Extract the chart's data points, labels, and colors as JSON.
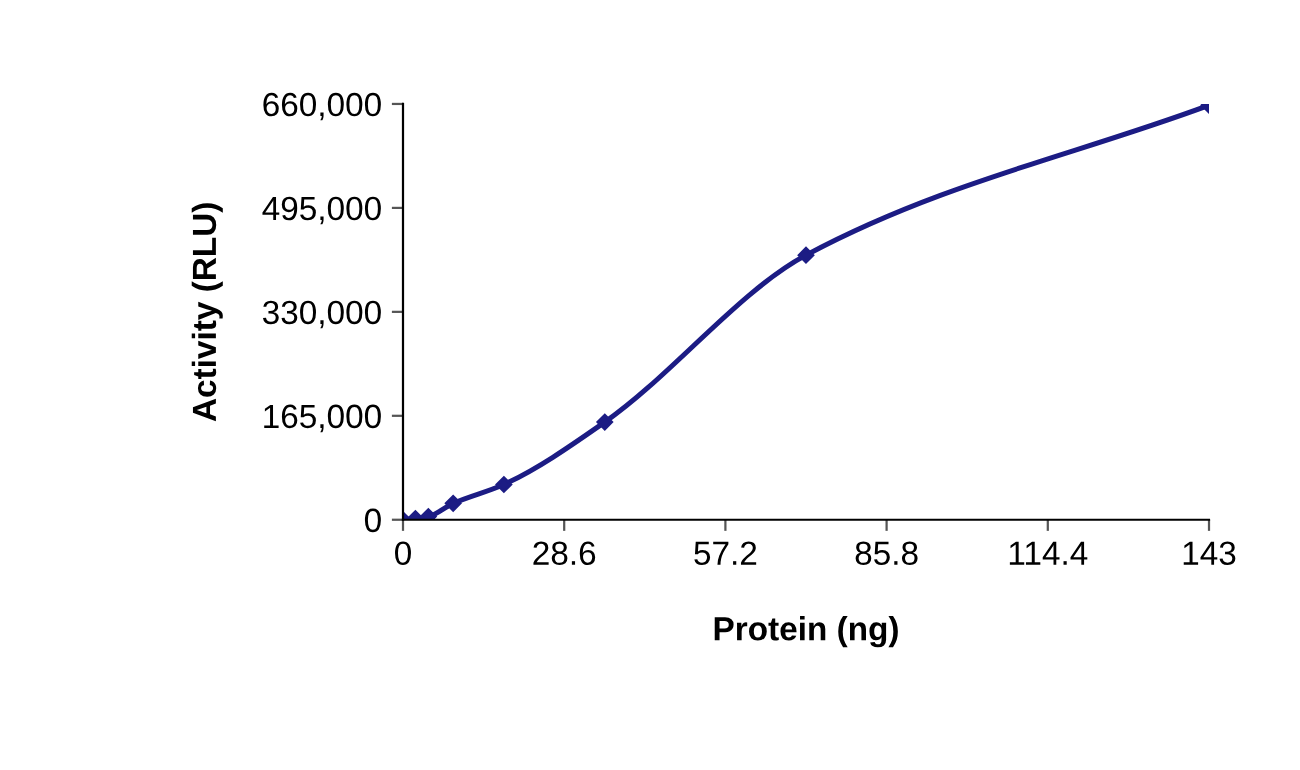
{
  "chart_data": {
    "type": "line",
    "xlabel": "Protein (ng)",
    "ylabel": "Activity (RLU)",
    "x": [
      0,
      2.2,
      4.5,
      8.9,
      17.9,
      35.8,
      71.5,
      143
    ],
    "series": [
      {
        "color": "#1c1c84",
        "values": [
          0,
          2000,
          5000,
          26000,
          56000,
          155000,
          420000,
          658000
        ]
      }
    ],
    "xlim": [
      0,
      143
    ],
    "ylim": [
      0,
      660000
    ],
    "xticks": [
      0,
      28.6,
      57.2,
      85.8,
      114.4,
      143
    ],
    "yticks": [
      {
        "value": 0,
        "label": "0"
      },
      {
        "value": 165000,
        "label": "165,000"
      },
      {
        "value": 330000,
        "label": "330,000"
      },
      {
        "value": 495000,
        "label": "495,000"
      },
      {
        "value": 660000,
        "label": "660,000"
      }
    ],
    "grid": false,
    "legend": false,
    "marker": "diamond",
    "line_style": "solid"
  }
}
